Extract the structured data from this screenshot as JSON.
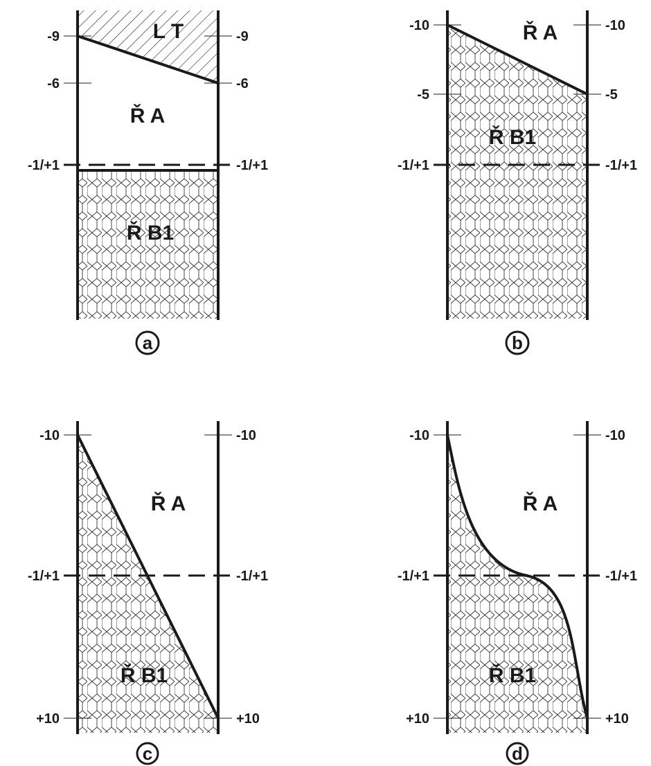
{
  "panels": {
    "a": {
      "letter": "a",
      "ticks_left": [
        "-9",
        "-6",
        "-1/+1"
      ],
      "ticks_right": [
        "-9",
        "-6",
        "-1/+1"
      ],
      "zones": {
        "top": "L T",
        "middle": "Ř A",
        "bottom": "Ř B1"
      }
    },
    "b": {
      "letter": "b",
      "ticks_left": [
        "-10",
        "-5",
        "-1/+1"
      ],
      "ticks_right": [
        "-10",
        "-5",
        "-1/+1"
      ],
      "zones": {
        "upper": "Ř A",
        "lower": "Ř B1"
      }
    },
    "c": {
      "letter": "c",
      "ticks_left": [
        "-10",
        "-1/+1",
        "+10"
      ],
      "ticks_right": [
        "-10",
        "-1/+1",
        "+10"
      ],
      "zones": {
        "upper": "Ř A",
        "lower": "Ř B1"
      }
    },
    "d": {
      "letter": "d",
      "ticks_left": [
        "-10",
        "-1/+1",
        "+10"
      ],
      "ticks_right": [
        "-10",
        "-1/+1",
        "+10"
      ],
      "zones": {
        "upper": "Ř A",
        "lower": "Ř B1"
      }
    }
  },
  "colors": {
    "ink": "#1a1a1a",
    "paper": "#ffffff"
  }
}
